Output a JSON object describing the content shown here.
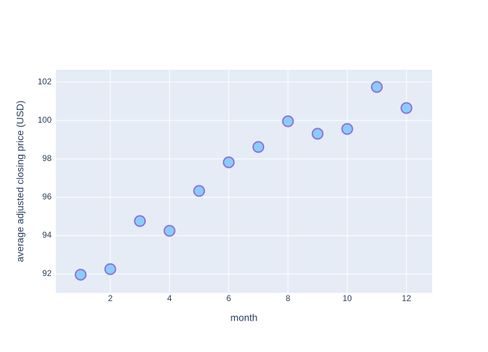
{
  "chart_data": {
    "type": "scatter",
    "x_label": "month",
    "y_label": "average adjusted closing price (USD)",
    "x": [
      1,
      2,
      3,
      4,
      5,
      6,
      7,
      8,
      9,
      10,
      11,
      12
    ],
    "series": [
      {
        "color": "#87cefa",
        "edge_color": "#9370db",
        "values": [
          91.96,
          92.25,
          94.76,
          94.25,
          96.33,
          97.82,
          98.62,
          99.96,
          99.31,
          99.56,
          101.75,
          100.65
        ]
      }
    ],
    "xlim": [
      0.16,
      12.87
    ],
    "xticks": [
      2,
      4,
      6,
      8,
      10,
      12
    ],
    "ylim": [
      91.02,
      102.65
    ],
    "yticks": [
      92,
      94,
      96,
      98,
      100,
      102
    ],
    "grid": true,
    "background": "#e5ecf6"
  }
}
